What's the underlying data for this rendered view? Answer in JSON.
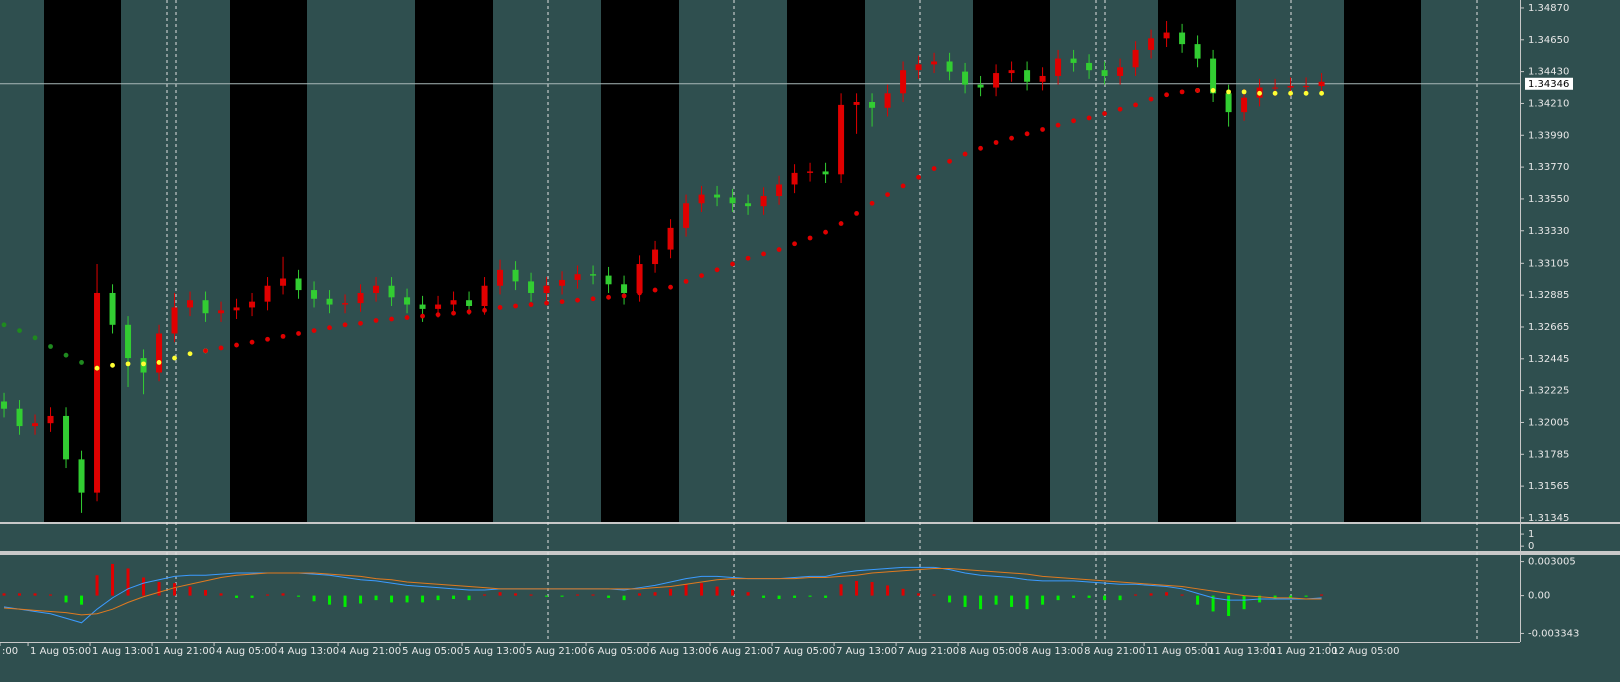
{
  "chart_data": [
    {
      "type": "candlestick",
      "xlim": [
        -0.26,
        97.8
      ],
      "ylim": [
        1.31317,
        1.34925
      ],
      "up_color": "#e00000",
      "down_color": "#32cd32",
      "yticks": [
        {
          "value": 1.3487,
          "label": "1.34870"
        },
        {
          "value": 1.3465,
          "label": "1.34650"
        },
        {
          "value": 1.3443,
          "label": "1.34430"
        },
        {
          "value": 1.3421,
          "label": "1.34210"
        },
        {
          "value": 1.3399,
          "label": "1.33990"
        },
        {
          "value": 1.3377,
          "label": "1.33770"
        },
        {
          "value": 1.3355,
          "label": "1.33550"
        },
        {
          "value": 1.3333,
          "label": "1.33330"
        },
        1.33105,
        1.32885,
        1.32665,
        1.32445,
        1.32225,
        {
          "value": 1.32005,
          "label": "1.32005"
        },
        1.31785,
        1.31565,
        1.31345
      ],
      "current_price": {
        "value": 1.34346,
        "label": "1.34346"
      },
      "open": [
        1.3215,
        1.321,
        1.3198,
        1.32,
        1.3205,
        1.3175,
        1.3152,
        1.329,
        1.3268,
        1.3245,
        1.3235,
        1.3262,
        1.328,
        1.3285,
        1.3276,
        1.3278,
        1.328,
        1.3284,
        1.3295,
        1.33,
        1.3292,
        1.3286,
        1.3282,
        1.3283,
        1.329,
        1.3295,
        1.3287,
        1.3282,
        1.3279,
        1.3282,
        1.3285,
        1.3281,
        1.3295,
        1.3306,
        1.3298,
        1.329,
        1.3295,
        1.3299,
        1.3303,
        1.3302,
        1.3296,
        1.329,
        1.331,
        1.332,
        1.3335,
        1.3352,
        1.3358,
        1.3356,
        1.3352,
        1.335,
        1.3357,
        1.3365,
        1.3373,
        1.3374,
        1.3372,
        1.342,
        1.3422,
        1.3418,
        1.3428,
        1.3444,
        1.3448,
        1.345,
        1.3443,
        1.3434,
        1.3432,
        1.3442,
        1.3444,
        1.3436,
        1.344,
        1.3452,
        1.3449,
        1.3444,
        1.344,
        1.3446,
        1.3458,
        1.3466,
        1.347,
        1.3462,
        1.3452,
        1.3428,
        1.3415,
        1.3425,
        1.3432,
        1.3432,
        1.3433,
        1.3433
      ],
      "high": [
        1.3221,
        1.3216,
        1.3206,
        1.3211,
        1.3211,
        1.3181,
        1.331,
        1.3296,
        1.3274,
        1.3251,
        1.3268,
        1.329,
        1.3291,
        1.3291,
        1.3284,
        1.3286,
        1.329,
        1.3301,
        1.3315,
        1.3306,
        1.3298,
        1.3292,
        1.3289,
        1.3296,
        1.3301,
        1.3301,
        1.3293,
        1.3288,
        1.3288,
        1.3291,
        1.3291,
        1.3301,
        1.3313,
        1.3312,
        1.3304,
        1.3301,
        1.3305,
        1.3309,
        1.3309,
        1.3308,
        1.3302,
        1.3316,
        1.3326,
        1.3341,
        1.3358,
        1.3364,
        1.3364,
        1.3362,
        1.3358,
        1.3363,
        1.3371,
        1.3379,
        1.338,
        1.338,
        1.3428,
        1.3428,
        1.3428,
        1.3434,
        1.345,
        1.3454,
        1.3456,
        1.3456,
        1.3449,
        1.344,
        1.3448,
        1.345,
        1.345,
        1.3446,
        1.3458,
        1.3458,
        1.3455,
        1.345,
        1.3452,
        1.3464,
        1.3472,
        1.3478,
        1.3476,
        1.3468,
        1.3458,
        1.3434,
        1.3431,
        1.3438,
        1.3438,
        1.3439,
        1.3439,
        1.3442
      ],
      "low": [
        1.3204,
        1.3192,
        1.3192,
        1.3194,
        1.3169,
        1.3138,
        1.3146,
        1.3262,
        1.3225,
        1.322,
        1.3229,
        1.3256,
        1.3274,
        1.327,
        1.327,
        1.3272,
        1.3274,
        1.3278,
        1.3289,
        1.3286,
        1.328,
        1.3276,
        1.3276,
        1.3277,
        1.3284,
        1.3281,
        1.3276,
        1.327,
        1.3273,
        1.3276,
        1.3275,
        1.3275,
        1.3289,
        1.3292,
        1.3284,
        1.3284,
        1.3289,
        1.3293,
        1.3296,
        1.329,
        1.3282,
        1.3284,
        1.3304,
        1.3314,
        1.3329,
        1.3346,
        1.335,
        1.3346,
        1.3344,
        1.3344,
        1.3351,
        1.3359,
        1.3367,
        1.3366,
        1.3366,
        1.34,
        1.3405,
        1.3412,
        1.3422,
        1.3438,
        1.3442,
        1.3437,
        1.3428,
        1.3426,
        1.3426,
        1.3436,
        1.343,
        1.343,
        1.3434,
        1.3443,
        1.3438,
        1.3434,
        1.3434,
        1.344,
        1.3452,
        1.346,
        1.3456,
        1.3446,
        1.3422,
        1.3405,
        1.3409,
        1.3419,
        1.3426,
        1.3426,
        1.3427,
        1.3427
      ],
      "close": [
        1.321,
        1.3198,
        1.32,
        1.3205,
        1.3175,
        1.3152,
        1.329,
        1.3268,
        1.3245,
        1.3235,
        1.3262,
        1.328,
        1.3285,
        1.3276,
        1.3278,
        1.328,
        1.3284,
        1.3295,
        1.33,
        1.3292,
        1.3286,
        1.3282,
        1.3283,
        1.329,
        1.3295,
        1.3287,
        1.3282,
        1.3279,
        1.3282,
        1.3285,
        1.3281,
        1.3295,
        1.3306,
        1.3298,
        1.329,
        1.3295,
        1.3299,
        1.3303,
        1.3302,
        1.3296,
        1.329,
        1.331,
        1.332,
        1.3335,
        1.3352,
        1.3358,
        1.3356,
        1.3352,
        1.335,
        1.3357,
        1.3365,
        1.3373,
        1.3374,
        1.3372,
        1.342,
        1.3422,
        1.3418,
        1.3428,
        1.3444,
        1.3448,
        1.345,
        1.3443,
        1.3434,
        1.3432,
        1.3442,
        1.3444,
        1.3436,
        1.344,
        1.3452,
        1.3449,
        1.3444,
        1.344,
        1.3446,
        1.3458,
        1.3466,
        1.347,
        1.3462,
        1.3452,
        1.3428,
        1.3415,
        1.3425,
        1.3432,
        1.3432,
        1.3433,
        1.3433,
        1.3436
      ],
      "series": [
        {
          "color": "#1f8a1f",
          "values": [
            1.3268,
            1.3264,
            1.3259,
            1.3253,
            1.3247,
            1.3242,
            1.3238,
            null,
            null,
            null,
            null,
            null,
            null,
            null,
            null,
            null,
            null,
            null,
            null,
            null,
            null,
            null,
            null,
            null,
            null,
            null,
            null,
            null,
            null,
            null,
            null,
            null,
            null,
            null,
            null,
            null,
            null,
            null,
            null,
            null,
            null,
            null,
            null,
            null,
            null,
            null,
            null,
            null,
            null,
            null,
            null,
            null,
            null,
            null,
            null,
            null,
            null,
            null,
            null,
            null,
            null,
            null,
            null,
            null,
            null,
            null,
            null,
            null,
            null,
            null,
            null,
            null,
            null,
            null,
            null,
            null,
            null,
            null,
            null,
            null,
            null,
            null,
            null,
            null,
            null,
            null
          ]
        },
        {
          "color": "#ffff33",
          "values": [
            null,
            null,
            null,
            null,
            null,
            null,
            1.3238,
            1.324,
            1.3241,
            1.3241,
            1.3242,
            1.3245,
            1.3248,
            1.325,
            null,
            null,
            null,
            null,
            null,
            null,
            null,
            null,
            null,
            null,
            null,
            null,
            null,
            null,
            null,
            null,
            null,
            null,
            null,
            null,
            null,
            null,
            null,
            null,
            null,
            null,
            null,
            null,
            null,
            null,
            null,
            null,
            null,
            null,
            null,
            null,
            null,
            null,
            null,
            null,
            null,
            null,
            null,
            null,
            null,
            null,
            null,
            null,
            null,
            null,
            null,
            null,
            null,
            null,
            null,
            null,
            null,
            null,
            null,
            null,
            null,
            null,
            null,
            1.343,
            1.343,
            1.3429,
            1.3429,
            1.3428,
            1.3428,
            1.3428,
            1.3428,
            1.3428
          ]
        },
        {
          "color": "#e00000",
          "values": [
            null,
            null,
            null,
            null,
            null,
            null,
            null,
            null,
            null,
            null,
            null,
            null,
            null,
            1.325,
            1.3252,
            1.3254,
            1.3256,
            1.3258,
            1.326,
            1.3262,
            1.3264,
            1.3266,
            1.3268,
            1.3269,
            1.3271,
            1.3272,
            1.3273,
            1.3274,
            1.3275,
            1.3276,
            1.3277,
            1.3278,
            1.328,
            1.3281,
            1.3282,
            1.3283,
            1.3284,
            1.3285,
            1.3286,
            1.3287,
            1.3288,
            1.329,
            1.3292,
            1.3294,
            1.3298,
            1.3302,
            1.3306,
            1.331,
            1.3314,
            1.3317,
            1.332,
            1.3324,
            1.3328,
            1.3332,
            1.3338,
            1.3345,
            1.3352,
            1.3358,
            1.3364,
            1.337,
            1.3376,
            1.3381,
            1.3386,
            1.339,
            1.3394,
            1.3397,
            1.34,
            1.3403,
            1.3406,
            1.3409,
            1.3411,
            1.3414,
            1.3417,
            1.342,
            1.3424,
            1.3427,
            1.3429,
            1.343,
            null,
            null,
            null,
            null,
            null,
            null,
            null,
            null
          ]
        }
      ]
    },
    {
      "type": "line",
      "xlim": [
        -0.26,
        97.8
      ],
      "ylim": [
        -0.4,
        1.75
      ],
      "yticks": [
        1,
        0
      ],
      "series": []
    },
    {
      "type": "macd",
      "xlim": [
        -0.26,
        97.8
      ],
      "ylim": [
        -0.0041,
        0.0035
      ],
      "yticks": [
        0.003005,
        {
          "value": 0,
          "label": "0.00"
        },
        -0.003343
      ],
      "up_color": "#e00000",
      "down_color": "#00ee00",
      "xticks": [
        {
          "value": -0.26,
          "label": ":00"
        },
        {
          "value": 1.55,
          "label": "1 Aug 05:00"
        },
        {
          "value": 5.55,
          "label": "1 Aug 13:00"
        },
        {
          "value": 9.55,
          "label": "1 Aug 21:00"
        },
        {
          "value": 13.55,
          "label": "4 Aug 05:00"
        },
        {
          "value": 17.55,
          "label": "4 Aug 13:00"
        },
        {
          "value": 21.55,
          "label": "4 Aug 21:00"
        },
        {
          "value": 25.55,
          "label": "5 Aug 05:00"
        },
        {
          "value": 29.55,
          "label": "5 Aug 13:00"
        },
        {
          "value": 33.55,
          "label": "5 Aug 21:00"
        },
        {
          "value": 37.55,
          "label": "6 Aug 05:00"
        },
        {
          "value": 41.55,
          "label": "6 Aug 13:00"
        },
        {
          "value": 45.55,
          "label": "6 Aug 21:00"
        },
        {
          "value": 49.55,
          "label": "7 Aug 05:00"
        },
        {
          "value": 53.55,
          "label": "7 Aug 13:00"
        },
        {
          "value": 57.55,
          "label": "7 Aug 21:00"
        },
        {
          "value": 61.55,
          "label": "8 Aug 05:00"
        },
        {
          "value": 65.55,
          "label": "8 Aug 13:00"
        },
        {
          "value": 69.55,
          "label": "8 Aug 21:00"
        },
        {
          "value": 73.55,
          "label": "11 Aug 05:00"
        },
        {
          "value": 77.55,
          "label": "11 Aug 13:00"
        },
        {
          "value": 81.55,
          "label": "11 Aug 21:00"
        },
        {
          "value": 85.55,
          "label": "12 Aug 05:00"
        }
      ],
      "histogram": [
        0.0002,
        0.0002,
        0.0002,
        0.0001,
        -0.0006,
        -0.0008,
        0.0018,
        0.0028,
        0.0024,
        0.0016,
        0.0012,
        0.0011,
        0.0008,
        0.0005,
        0.0002,
        -0.0002,
        -0.0002,
        0.0001,
        0.0002,
        -0.0001,
        -0.0005,
        -0.0008,
        -0.001,
        -0.0007,
        -0.0004,
        -0.0006,
        -0.0006,
        -0.0006,
        -0.0004,
        -0.0003,
        -0.0004,
        0.0001,
        0.0003,
        0.0002,
        0.0001,
        -0.0001,
        -0.0001,
        0.0001,
        0.0001,
        -0.0002,
        -0.0004,
        0.0002,
        0.0003,
        0.0006,
        0.001,
        0.0011,
        0.0008,
        0.0005,
        0.0003,
        -0.0002,
        -0.0003,
        -0.0002,
        -0.0001,
        -0.0002,
        0.001,
        0.0013,
        0.0012,
        0.0009,
        0.0006,
        0.0002,
        0.0001,
        -0.0006,
        -0.001,
        -0.0012,
        -0.0008,
        -0.001,
        -0.0012,
        -0.0008,
        -0.0004,
        -0.0002,
        -0.0002,
        -0.0004,
        -0.0004,
        0.0001,
        0.0002,
        0.0003,
        0.0001,
        -0.0008,
        -0.0014,
        -0.0018,
        -0.0012,
        -0.0006,
        -0.0003,
        -0.0002,
        -0.0001,
        0.0001
      ],
      "series": [
        {
          "color": "#3b9bff",
          "values": [
            -0.001,
            -0.0012,
            -0.0014,
            -0.0016,
            -0.002,
            -0.0024,
            -0.0012,
            -0.0002,
            0.0006,
            0.0011,
            0.0014,
            0.0017,
            0.0018,
            0.0018,
            0.0019,
            0.002,
            0.002,
            0.002,
            0.002,
            0.002,
            0.0019,
            0.0018,
            0.0016,
            0.0014,
            0.0013,
            0.0011,
            0.0009,
            0.0008,
            0.0007,
            0.0006,
            0.0005,
            0.0005,
            0.0006,
            0.0006,
            0.0006,
            0.0006,
            0.0006,
            0.0006,
            0.0006,
            0.0006,
            0.0005,
            0.0007,
            0.0009,
            0.0012,
            0.0015,
            0.0017,
            0.0017,
            0.0016,
            0.0015,
            0.0015,
            0.0015,
            0.0016,
            0.0017,
            0.0017,
            0.002,
            0.0022,
            0.0023,
            0.0024,
            0.0025,
            0.0025,
            0.0025,
            0.0023,
            0.002,
            0.0018,
            0.0017,
            0.0016,
            0.0014,
            0.0013,
            0.0013,
            0.0013,
            0.0012,
            0.0011,
            0.001,
            0.001,
            0.0009,
            0.0008,
            0.0006,
            0.0002,
            -0.0002,
            -0.0004,
            -0.0004,
            -0.0003,
            -0.0003,
            -0.0003,
            -0.0003,
            -0.0002
          ]
        },
        {
          "color": "#e07a1f",
          "values": [
            -0.0011,
            -0.0012,
            -0.0013,
            -0.0014,
            -0.0015,
            -0.0017,
            -0.0016,
            -0.0012,
            -0.0006,
            -0.0001,
            0.0003,
            0.0007,
            0.001,
            0.0013,
            0.0016,
            0.0018,
            0.0019,
            0.002,
            0.002,
            0.002,
            0.002,
            0.0019,
            0.0018,
            0.0017,
            0.0015,
            0.0014,
            0.0012,
            0.0011,
            0.001,
            0.0009,
            0.0008,
            0.0007,
            0.0006,
            0.0006,
            0.0006,
            0.0006,
            0.0006,
            0.0006,
            0.0006,
            0.0006,
            0.0006,
            0.0006,
            0.0007,
            0.0008,
            0.001,
            0.0012,
            0.0014,
            0.0015,
            0.0015,
            0.0015,
            0.0015,
            0.0015,
            0.0016,
            0.0016,
            0.0017,
            0.0018,
            0.002,
            0.0021,
            0.0022,
            0.0023,
            0.0024,
            0.0024,
            0.0023,
            0.0022,
            0.0021,
            0.002,
            0.0019,
            0.0017,
            0.0016,
            0.0015,
            0.0014,
            0.0013,
            0.0012,
            0.0011,
            0.001,
            0.0009,
            0.0008,
            0.0006,
            0.0004,
            0.0002,
            0.0,
            -0.0001,
            -0.0002,
            -0.0002,
            -0.0003,
            -0.0003
          ]
        }
      ]
    }
  ]
}
